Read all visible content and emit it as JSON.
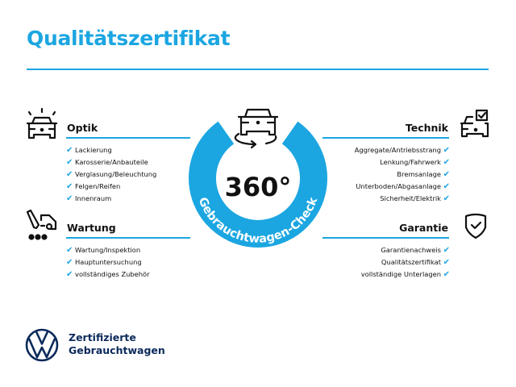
{
  "title": "Qualitätszertifikat",
  "center": {
    "value": "360°",
    "ring_text": "Gebrauchtwagen-Check"
  },
  "colors": {
    "accent": "#1ba6e1",
    "brand": "#0b2a5b"
  },
  "check_icon": "✔",
  "sections": {
    "optik": {
      "heading": "Optik",
      "icon": "car-lights-icon",
      "items": [
        "Lackierung",
        "Karosserie/Anbauteile",
        "Verglasung/Beleuchtung",
        "Felgen/Reifen",
        "Innenraum"
      ]
    },
    "wartung": {
      "heading": "Wartung",
      "icon": "service-icon",
      "items": [
        "Wartung/Inspektion",
        "Hauptuntersuchung",
        "vollständiges Zubehör"
      ]
    },
    "technik": {
      "heading": "Technik",
      "icon": "car-checkbox-icon",
      "items": [
        "Aggregate/Antriebsstrang",
        "Lenkung/Fahrwerk",
        "Bremsanlage",
        "Unterboden/Abgasanlage",
        "Sicherheit/Elektrik"
      ]
    },
    "garantie": {
      "heading": "Garantie",
      "icon": "shield-check-icon",
      "items": [
        "Garantienachweis",
        "Qualitätszertifikat",
        "vollständige Unterlagen"
      ]
    }
  },
  "logo": {
    "line1": "Zertifizierte",
    "line2": "Gebrauchtwagen"
  }
}
